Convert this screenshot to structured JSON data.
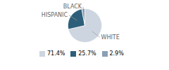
{
  "chart_data": {
    "type": "pie",
    "categories": [
      "WHITE",
      "HISPANIC",
      "BLACK"
    ],
    "values": [
      71.4,
      25.7,
      2.9
    ],
    "value_labels": [
      "71.4%",
      "25.7%",
      "2.9%"
    ],
    "colors": [
      "#cdd5e0",
      "#2e5f7a",
      "#8a9fb5"
    ],
    "legend": "bottom"
  }
}
